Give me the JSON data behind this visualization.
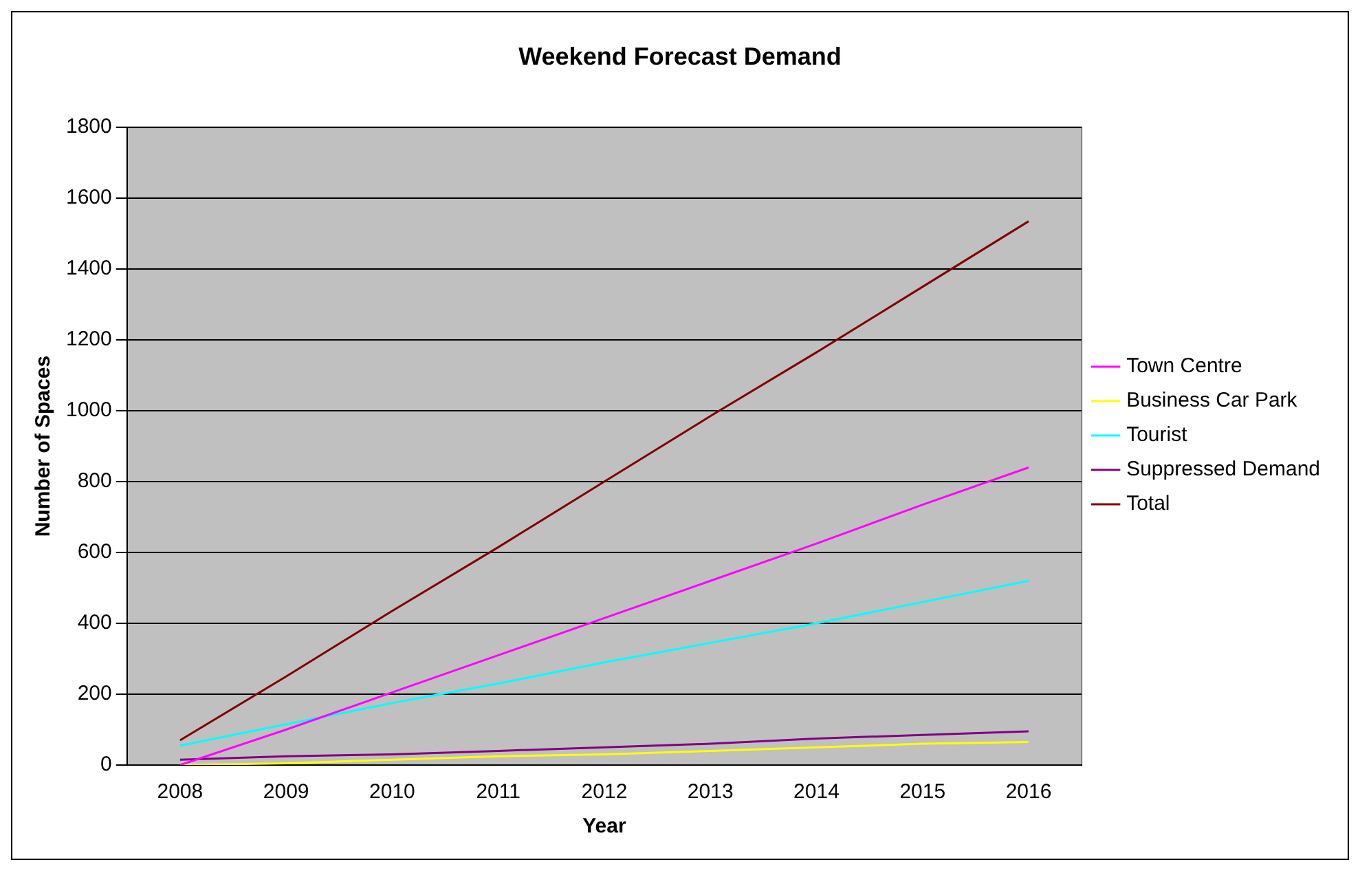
{
  "chart_data": {
    "type": "line",
    "title": "Weekend Forecast Demand",
    "xlabel": "Year",
    "ylabel": "Number of Spaces",
    "categories": [
      "2008",
      "2009",
      "2010",
      "2011",
      "2012",
      "2013",
      "2014",
      "2015",
      "2016"
    ],
    "series": [
      {
        "name": "Town Centre",
        "color": "#ff00ff",
        "values": [
          0,
          100,
          205,
          310,
          415,
          520,
          625,
          735,
          840
        ]
      },
      {
        "name": "Business Car Park",
        "color": "#ffff00",
        "values": [
          0,
          5,
          15,
          25,
          30,
          40,
          50,
          60,
          65
        ]
      },
      {
        "name": "Tourist",
        "color": "#00ffff",
        "values": [
          55,
          115,
          175,
          230,
          290,
          345,
          400,
          460,
          520
        ]
      },
      {
        "name": "Suppressed Demand",
        "color": "#800080",
        "values": [
          15,
          25,
          30,
          40,
          50,
          60,
          75,
          85,
          95
        ]
      },
      {
        "name": "Total",
        "color": "#800000",
        "values": [
          70,
          250,
          435,
          615,
          800,
          985,
          1165,
          1350,
          1535
        ]
      }
    ],
    "ylim": [
      0,
      1800
    ],
    "yticks": [
      0,
      200,
      400,
      600,
      800,
      1000,
      1200,
      1400,
      1600,
      1800
    ],
    "grid": "y",
    "legend": "right",
    "marker": "none",
    "line_style": "solid"
  }
}
